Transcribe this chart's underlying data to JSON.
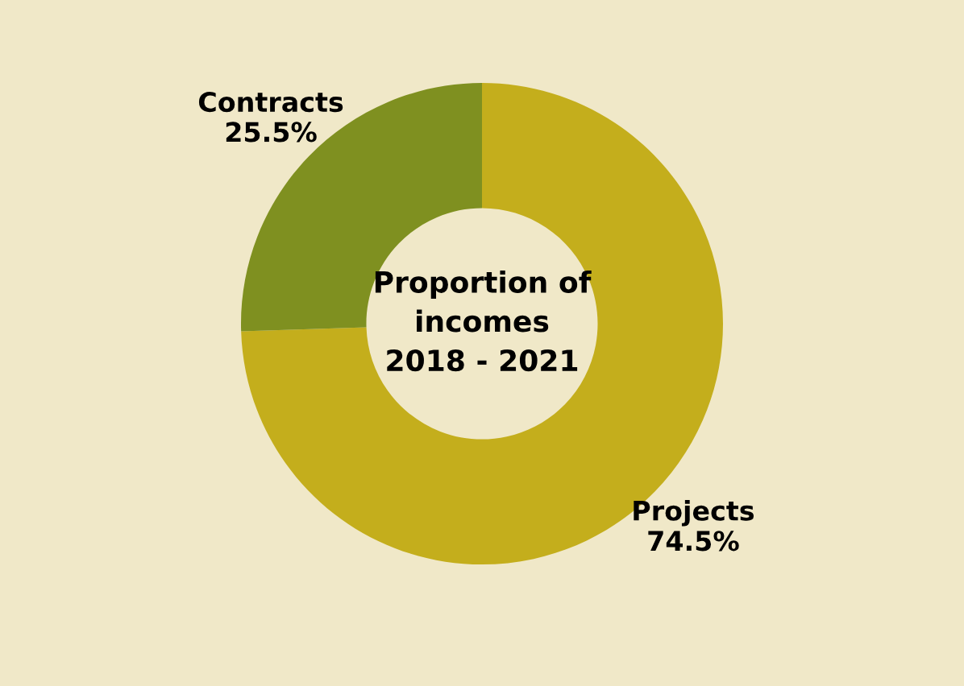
{
  "chart_data": {
    "type": "donut",
    "title": "Proportion of\nincomes\n2018 - 2021",
    "categories": [
      "Projects",
      "Contracts"
    ],
    "values": [
      74.5,
      25.5
    ],
    "colors": [
      "#c4ae1c",
      "#7f9020"
    ],
    "value_labels": [
      "74.5%",
      "25.5%"
    ],
    "legend": false
  }
}
